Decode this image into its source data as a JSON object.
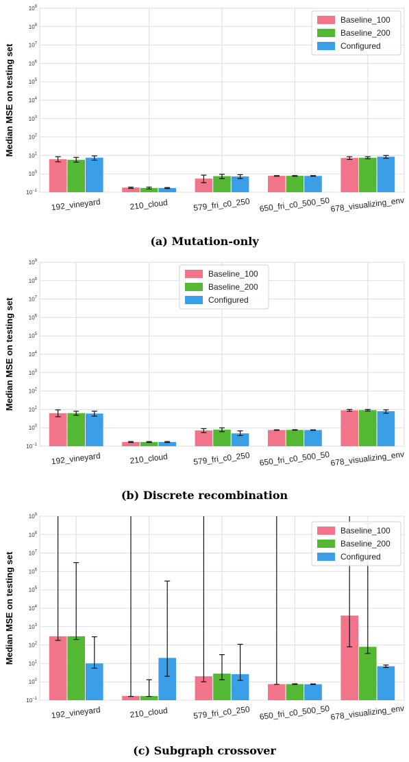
{
  "chart_data": [
    {
      "type": "bar",
      "caption": "(a) Mutation-only",
      "ylabel": "Median MSE on testing set",
      "yscale": "log",
      "ylim": [
        0.1,
        1000000000
      ],
      "grid": true,
      "legend_position": "top-right",
      "categories": [
        "192_vineyard",
        "210_cloud",
        "579_fri_c0_250",
        "650_fri_c0_500_50",
        "678_visualizing_env"
      ],
      "series": [
        {
          "name": "Baseline_100",
          "color": "#f2748a",
          "values": [
            6.2,
            0.18,
            0.55,
            0.78,
            7.2
          ],
          "err_low": [
            4.5,
            0.16,
            0.33,
            0.74,
            6.0
          ],
          "err_high": [
            8.5,
            0.19,
            0.85,
            0.8,
            8.5
          ]
        },
        {
          "name": "Baseline_200",
          "color": "#55b835",
          "values": [
            5.8,
            0.17,
            0.75,
            0.78,
            7.5
          ],
          "err_low": [
            4.3,
            0.15,
            0.55,
            0.74,
            6.5
          ],
          "err_high": [
            7.8,
            0.19,
            0.95,
            0.8,
            8.5
          ]
        },
        {
          "name": "Configured",
          "color": "#3a9fe6",
          "values": [
            7.5,
            0.17,
            0.72,
            0.77,
            8.5
          ],
          "err_low": [
            5.5,
            0.16,
            0.55,
            0.74,
            7.0
          ],
          "err_high": [
            9.5,
            0.18,
            0.9,
            0.8,
            10.0
          ]
        }
      ]
    },
    {
      "type": "bar",
      "caption": "(b) Discrete recombination",
      "ylabel": "Median MSE on testing set",
      "yscale": "log",
      "ylim": [
        0.1,
        1000000000
      ],
      "grid": true,
      "legend_position": "top-right",
      "categories": [
        "192_vineyard",
        "210_cloud",
        "579_fri_c0_250",
        "650_fri_c0_500_50",
        "678_visualizing_env"
      ],
      "series": [
        {
          "name": "Baseline_100",
          "color": "#f2748a",
          "values": [
            6.2,
            0.17,
            0.72,
            0.76,
            9.0
          ],
          "err_low": [
            4.0,
            0.16,
            0.55,
            0.73,
            8.0
          ],
          "err_high": [
            9.5,
            0.18,
            0.9,
            0.78,
            10.0
          ]
        },
        {
          "name": "Baseline_200",
          "color": "#55b835",
          "values": [
            6.3,
            0.17,
            0.8,
            0.77,
            9.2
          ],
          "err_low": [
            4.8,
            0.16,
            0.62,
            0.74,
            8.2
          ],
          "err_high": [
            8.0,
            0.18,
            1.0,
            0.79,
            10.0
          ]
        },
        {
          "name": "Configured",
          "color": "#3a9fe6",
          "values": [
            6.0,
            0.17,
            0.5,
            0.76,
            8.0
          ],
          "err_low": [
            4.3,
            0.16,
            0.38,
            0.73,
            6.2
          ],
          "err_high": [
            8.0,
            0.18,
            0.68,
            0.78,
            9.5
          ]
        }
      ]
    },
    {
      "type": "bar",
      "caption": "(c) Subgraph crossover",
      "ylabel": "Median MSE on testing set",
      "yscale": "log",
      "ylim": [
        0.1,
        1000000000
      ],
      "grid": true,
      "legend_position": "top-center",
      "categories": [
        "192_vineyard",
        "210_cloud",
        "579_fri_c0_250",
        "650_fri_c0_500_50",
        "678_visualizing_env"
      ],
      "series": [
        {
          "name": "Baseline_100",
          "color": "#f2748a",
          "values": [
            300,
            0.17,
            2.0,
            0.75,
            4000
          ],
          "err_low": [
            180,
            0.16,
            1.0,
            0.73,
            80
          ],
          "err_high": 1000000000
        },
        {
          "name": "Baseline_200",
          "color": "#55b835",
          "values": [
            300,
            0.17,
            2.8,
            0.75,
            80
          ],
          "err_low": [
            200,
            0.16,
            1.3,
            0.73,
            35
          ],
          "err_high": [
            3000000,
            1.3,
            30,
            0.78,
            400000000
          ]
        },
        {
          "name": "Configured",
          "color": "#3a9fe6",
          "values": [
            10,
            20,
            2.6,
            0.74,
            7.0
          ],
          "err_low": [
            5.5,
            2.0,
            1.2,
            0.72,
            6.0
          ],
          "err_high": [
            280,
            300000,
            110,
            0.77,
            8.2
          ]
        }
      ]
    }
  ]
}
